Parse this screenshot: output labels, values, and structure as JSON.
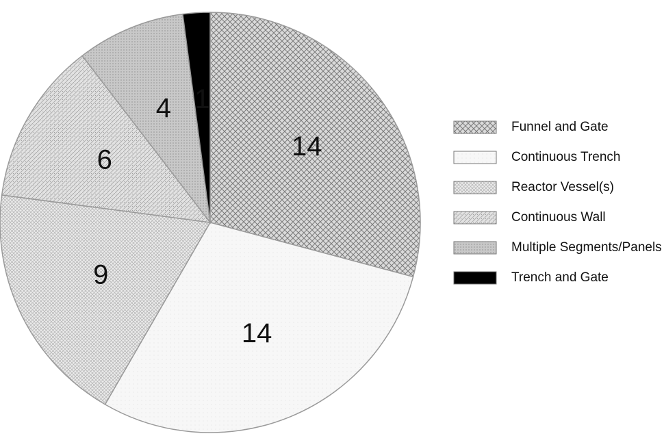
{
  "chart_data": {
    "type": "pie",
    "categories": [
      "Funnel and Gate",
      "Continuous Trench",
      "Reactor Vessel(s)",
      "Continuous Wall",
      "Multiple  Segments/Panels",
      "Trench and Gate"
    ],
    "values": [
      14,
      14,
      9,
      6,
      4,
      1
    ],
    "legend_position": "right",
    "colors": {
      "Funnel and Gate": "#cfcfcf",
      "Continuous Trench": "#f6f6f6",
      "Reactor Vessel(s)": "#e6e6e6",
      "Continuous Wall": "#dcdcdc",
      "Multiple  Segments/Panels": "#c2c2c2",
      "Trench and Gate": "#000000"
    }
  }
}
